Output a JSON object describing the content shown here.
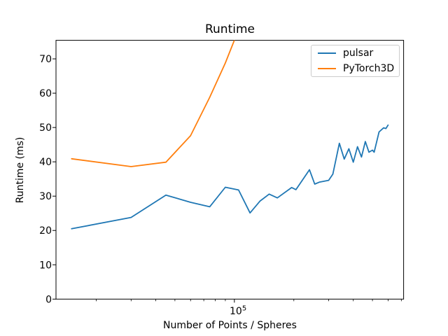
{
  "figure": {
    "background": "#ffffff",
    "axes_color": "#000000"
  },
  "chart_data": {
    "type": "line",
    "title": "Runtime",
    "xlabel": "Number of Points / Spheres",
    "ylabel": "Runtime (ms)",
    "xscale": "log",
    "grid": false,
    "legend_position": "upper right",
    "xlim": [
      12500,
      719000
    ],
    "ylim": [
      0,
      75.4
    ],
    "yticks": [
      0,
      10,
      20,
      30,
      40,
      50,
      60,
      70
    ],
    "xtick_major": {
      "value": 100000,
      "label_base": "10",
      "label_exp": "5"
    },
    "x_minor_ticks": [
      20000,
      30000,
      40000,
      50000,
      60000,
      70000,
      80000,
      90000,
      200000,
      300000,
      400000,
      500000,
      600000,
      700000
    ],
    "series": [
      {
        "name": "pulsar",
        "color": "#1f77b4",
        "points": [
          [
            15000,
            20.5
          ],
          [
            30000,
            23.8
          ],
          [
            45000,
            30.3
          ],
          [
            60000,
            28.2
          ],
          [
            75000,
            26.9
          ],
          [
            90000,
            32.6
          ],
          [
            105000,
            31.8
          ],
          [
            120000,
            25.1
          ],
          [
            135000,
            28.6
          ],
          [
            150000,
            30.6
          ],
          [
            165000,
            29.5
          ],
          [
            195000,
            32.5
          ],
          [
            205000,
            31.9
          ],
          [
            240000,
            37.7
          ],
          [
            255000,
            33.5
          ],
          [
            270000,
            34.1
          ],
          [
            300000,
            34.6
          ],
          [
            315000,
            36.4
          ],
          [
            340000,
            45.4
          ],
          [
            360000,
            40.8
          ],
          [
            380000,
            43.8
          ],
          [
            400000,
            39.9
          ],
          [
            420000,
            44.4
          ],
          [
            440000,
            41.4
          ],
          [
            460000,
            45.9
          ],
          [
            480000,
            42.8
          ],
          [
            500000,
            43.4
          ],
          [
            510000,
            42.8
          ],
          [
            540000,
            48.7
          ],
          [
            570000,
            49.9
          ],
          [
            585000,
            49.7
          ],
          [
            600000,
            50.7
          ]
        ]
      },
      {
        "name": "PyTorch3D",
        "color": "#ff7f0e",
        "points": [
          [
            15000,
            40.9
          ],
          [
            30000,
            38.6
          ],
          [
            45000,
            39.9
          ],
          [
            60000,
            47.6
          ],
          [
            75000,
            58.8
          ],
          [
            90000,
            68.8
          ],
          [
            105000,
            78.5
          ]
        ]
      }
    ]
  }
}
